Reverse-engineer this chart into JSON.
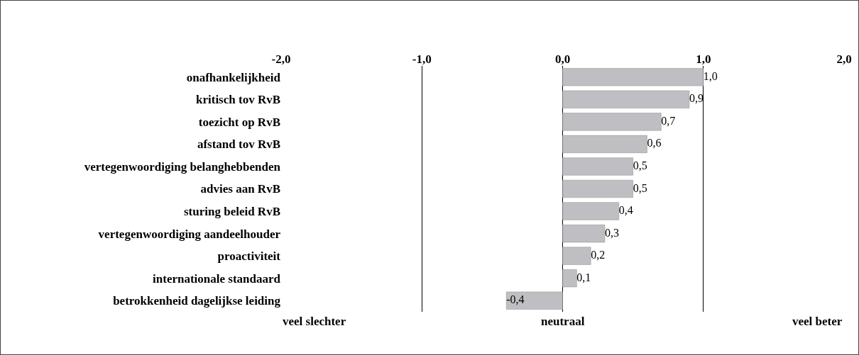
{
  "chart_data": {
    "type": "bar",
    "orientation": "horizontal",
    "categories": [
      "onafhankelijkheid",
      "kritisch tov RvB",
      "toezicht op RvB",
      "afstand tov RvB",
      "vertegenwoordiging belanghebbenden",
      "advies aan RvB",
      "sturing beleid RvB",
      "vertegenwoordiging aandeelhouder",
      "proactiviteit",
      "internationale standaard",
      "betrokkenheid dagelijkse leiding"
    ],
    "values": [
      1.0,
      0.9,
      0.7,
      0.6,
      0.5,
      0.5,
      0.4,
      0.3,
      0.2,
      0.1,
      -0.4
    ],
    "value_labels": [
      "1,0",
      "0,9",
      "0,7",
      "0,6",
      "0,5",
      "0,5",
      "0,4",
      "0,3",
      "0,2",
      "0,1",
      "-0,4"
    ],
    "color": "#bfbfc3",
    "xlim": [
      -2,
      2
    ],
    "xticks": [
      {
        "value": -2,
        "label": "-2,0"
      },
      {
        "value": -1,
        "label": "-1,0"
      },
      {
        "value": 0,
        "label": "0,0"
      },
      {
        "value": 1,
        "label": "1,0"
      },
      {
        "value": 2,
        "label": "2,0"
      }
    ],
    "grid": "x",
    "annotations": [
      "veel slechter",
      "neutraal",
      "veel beter"
    ]
  }
}
